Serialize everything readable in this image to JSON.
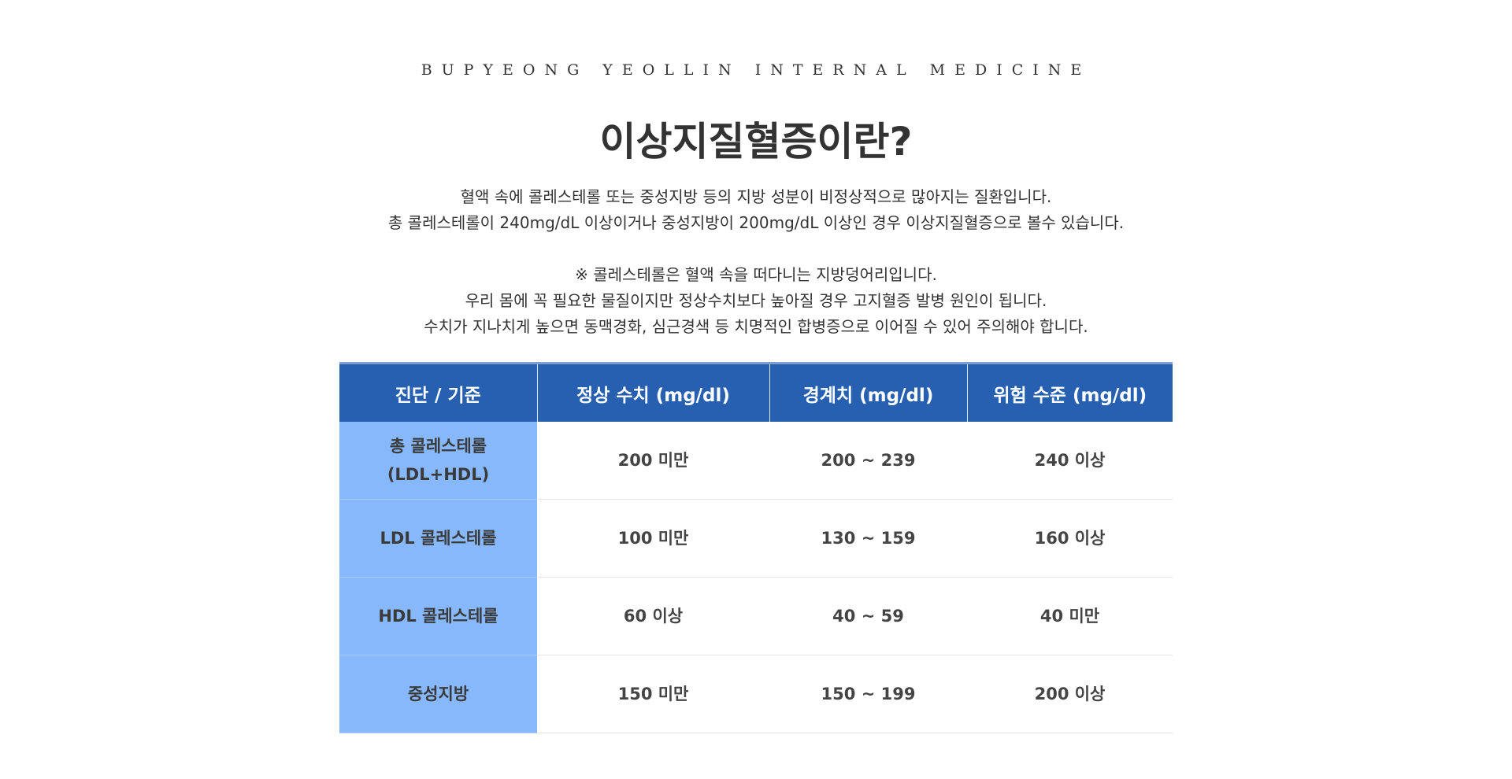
{
  "header": {
    "brand": "BUPYEONG YEOLLIN INTERNAL MEDICINE",
    "title": "이상지질혈증이란?"
  },
  "intro": {
    "lines": [
      "혈액 속에 콜레스테롤 또는 중성지방 등의 지방 성분이 비정상적으로 많아지는 질환입니다.",
      "총 콜레스테롤이 240mg/dL 이상이거나 중성지방이 200mg/dL 이상인 경우 이상지질혈증으로 볼수 있습니다."
    ]
  },
  "note": {
    "lines": [
      "※ 콜레스테롤은 혈액 속을 떠다니는 지방덩어리입니다.",
      "우리 몸에 꼭 필요한 물질이지만 정상수치보다 높아질 경우 고지혈증 발병 원인이 됩니다.",
      "수치가 지나치게 높으면 동맥경화, 심근경색 등 치명적인 합병증으로 이어질 수 있어 주의해야 합니다."
    ]
  },
  "table": {
    "columns": [
      "진단 / 기준",
      "정상 수치 (mg/dl)",
      "경계치 (mg/dl)",
      "위험 수준 (mg/dl)"
    ],
    "rows": [
      [
        "총 콜레스테롤\n(LDL+HDL)",
        "200 미만",
        "200 ~ 239",
        "240 이상"
      ],
      [
        "LDL 콜레스테롤",
        "100 미만",
        "130 ~ 159",
        "160 이상"
      ],
      [
        "HDL 콜레스테롤",
        "60 이상",
        "40 ~ 59",
        "40 미만"
      ],
      [
        "중성지방",
        "150 미만",
        "150 ~ 199",
        "200 이상"
      ]
    ]
  }
}
